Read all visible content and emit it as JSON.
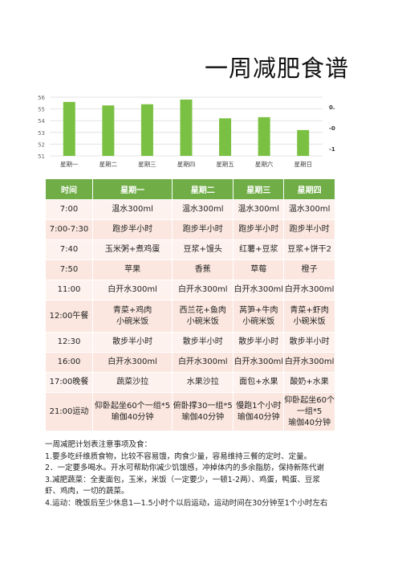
{
  "title": "一周减肥食谱",
  "chart_data": {
    "type": "bar",
    "categories": [
      "星期一",
      "星期二",
      "星期三",
      "星期四",
      "星期五",
      "星期六",
      "星期日"
    ],
    "values": [
      55.6,
      55.3,
      55.4,
      55.8,
      54.2,
      54.3,
      53.2
    ],
    "ylim": [
      51,
      56
    ],
    "yticks": [
      "56",
      "55",
      "54",
      "53",
      "52",
      "51"
    ],
    "right_ticks": [
      "0.",
      "-0.",
      "-1."
    ],
    "grid": true,
    "color": "#7ac143"
  },
  "table": {
    "headers": [
      "时间",
      "星期一",
      "星期二",
      "星期三",
      "星期四"
    ],
    "rows": [
      {
        "cells": [
          "7:00",
          "温水300ml",
          "温水300ml",
          "温水300ml",
          "温水300ml"
        ]
      },
      {
        "cells": [
          "7:00-7:30",
          "跑步半小时",
          "跑步半小时",
          "跑步半小时",
          "跑步半小时"
        ]
      },
      {
        "cells": [
          "7:40",
          "玉米粥+煮鸡蛋",
          "豆浆+馒头",
          "红薯+豆浆",
          "豆浆+饼干2"
        ]
      },
      {
        "cells": [
          "7:50",
          "苹果",
          "香蕉",
          "草莓",
          "橙子"
        ]
      },
      {
        "cells": [
          "11:00",
          "白开水300ml",
          "白开水300ml",
          "白开水300ml",
          "白开水300ml"
        ]
      },
      {
        "cells": [
          "12:00午餐",
          "青菜+鸡肉\n小碗米饭",
          "西兰花+鱼肉\n小碗米饭",
          "莴笋+牛肉\n小碗米饭",
          "青菜+虾肉\n小碗米饭"
        ]
      },
      {
        "cells": [
          "12:30",
          "散步半小时",
          "散步半小时",
          "散步半小时",
          "散步半小时"
        ]
      },
      {
        "cells": [
          "16:00",
          "白开水300ml",
          "白开水300ml",
          "白开水300ml",
          "白开水300ml"
        ]
      },
      {
        "cells": [
          "17:00晚餐",
          "蔬菜沙拉",
          "水果沙拉",
          "面包+水果",
          "酸奶+水果"
        ]
      },
      {
        "cells": [
          "21:00运动",
          "仰卧起坐60个一组*5\n瑜伽40分钟",
          "俯卧撑30一组*5\n瑜伽40分钟",
          "慢跑1个小时\n瑜伽40分钟",
          "仰卧起坐60个\n一组*5\n瑜伽40分钟"
        ]
      }
    ]
  },
  "notes": [
    "一周减肥计划表注意事项及食：",
    "1.要多吃纤维质食物，比较不容易饿，肉食少量，容易维持三餐的定时、定量。",
    "2．一定要多喝水。开水可帮助你减少饥饿感，冲掉体内的多余脂肪，保持新陈代谢",
    "3.减肥蔬菜：全麦面包，玉米，米饭（一定要少，一顿1-2两）、鸡蛋，鸭蛋、豆浆",
    "虾、鸡肉，一切的蔬菜。",
    "4.运动：晚饭后至少休息1—1.5小时个以后运动，运动时间在30分钟至1个小时左右"
  ]
}
